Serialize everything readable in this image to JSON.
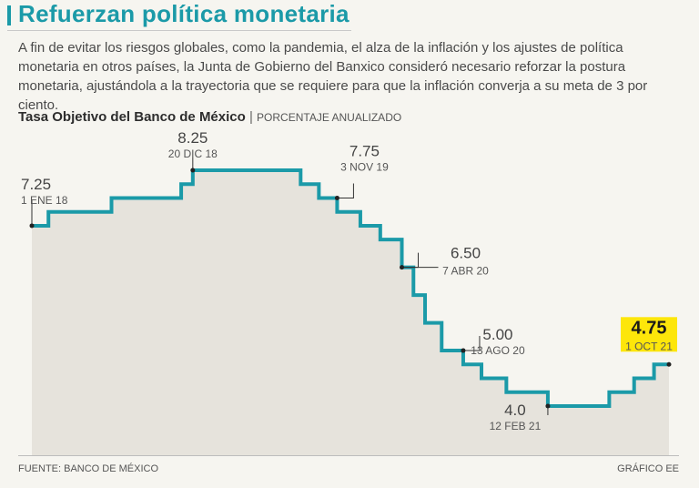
{
  "header": {
    "title": "Refuerzan política monetaria",
    "intro": "A fin de evitar los riesgos globales, como la pandemia, el alza de la inflación y los ajustes de política monetaria en otros países, la Junta de Gobierno del Banxico consideró necesario reforzar la postura monetaria, ajustándola a la trayectoria que se requiere para que la inflación converja a su meta de 3 por ciento."
  },
  "chart_title": {
    "main": "Tasa Objetivo del Banco de México",
    "separator": "|",
    "subtitle": "PORCENTAJE ANUALIZADO"
  },
  "footer": {
    "source": "FUENTE: BANCO DE MÉXICO",
    "credit": "GRÁFICO EE"
  },
  "colors": {
    "accent": "#1b9aa8",
    "area": "#e6e3dc",
    "highlight": "#fde60a",
    "text": "#4a4a4a"
  },
  "chart_data": {
    "type": "area",
    "title": "Tasa Objetivo del Banco de México",
    "ylabel": "PORCENTAJE ANUALIZADO",
    "xlim": [
      2018.0,
      2021.84
    ],
    "ylim": [
      4.0,
      8.25
    ],
    "step": true,
    "points": [
      {
        "x": 2018.0,
        "y": 7.25
      },
      {
        "x": 2018.1,
        "y": 7.5
      },
      {
        "x": 2018.48,
        "y": 7.75
      },
      {
        "x": 2018.9,
        "y": 8.0
      },
      {
        "x": 2018.97,
        "y": 8.25
      },
      {
        "x": 2019.62,
        "y": 8.0
      },
      {
        "x": 2019.73,
        "y": 7.75
      },
      {
        "x": 2019.84,
        "y": 7.5
      },
      {
        "x": 2019.98,
        "y": 7.25
      },
      {
        "x": 2020.1,
        "y": 7.0
      },
      {
        "x": 2020.23,
        "y": 6.5
      },
      {
        "x": 2020.3,
        "y": 6.0
      },
      {
        "x": 2020.37,
        "y": 5.5
      },
      {
        "x": 2020.47,
        "y": 5.0
      },
      {
        "x": 2020.6,
        "y": 4.75
      },
      {
        "x": 2020.71,
        "y": 4.5
      },
      {
        "x": 2020.86,
        "y": 4.25
      },
      {
        "x": 2021.11,
        "y": 4.0
      },
      {
        "x": 2021.48,
        "y": 4.25
      },
      {
        "x": 2021.63,
        "y": 4.5
      },
      {
        "x": 2021.75,
        "y": 4.75
      },
      {
        "x": 2021.84,
        "y": 4.75
      }
    ],
    "annotations": [
      {
        "value": "7.25",
        "date": "1 ENE 18",
        "x": 2018.0,
        "y": 7.25,
        "align": "left",
        "highlight": false
      },
      {
        "value": "8.25",
        "date": "20 DIC 18",
        "x": 2018.97,
        "y": 8.25,
        "align": "center",
        "highlight": false
      },
      {
        "value": "7.75",
        "date": "3 NOV 19",
        "x": 2019.84,
        "y": 7.75,
        "align": "right",
        "highlight": false
      },
      {
        "value": "6.50",
        "date": "7 ABR 20",
        "x": 2020.23,
        "y": 6.5,
        "align": "right",
        "highlight": false
      },
      {
        "value": "5.00",
        "date": "13 AGO 20",
        "x": 2020.6,
        "y": 5.0,
        "align": "right",
        "highlight": false
      },
      {
        "value": "4.0",
        "date": "12 FEB 21",
        "x": 2021.11,
        "y": 4.0,
        "align": "below",
        "highlight": false
      },
      {
        "value": "4.75",
        "date": "1 OCT 21",
        "x": 2021.84,
        "y": 4.75,
        "align": "above",
        "highlight": true
      }
    ]
  }
}
